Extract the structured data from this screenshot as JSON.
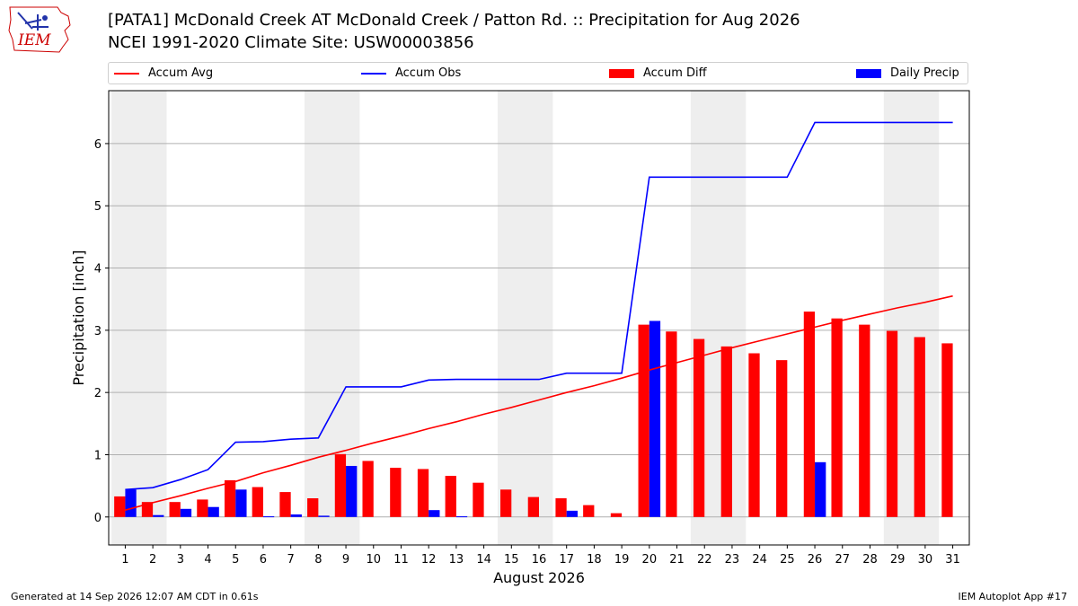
{
  "header": {
    "logo_text": "IEM",
    "title_line1": "[PATA1] McDonald Creek  AT McDonald Creek / Patton Rd. :: Precipitation for Aug 2026",
    "title_line2": "NCEI 1991-2020 Climate Site: USW00003856"
  },
  "footer": {
    "generated": "Generated at 14 Sep 2026 12:07 AM CDT in 0.61s",
    "app": "IEM Autoplot App #17"
  },
  "colors": {
    "accum_avg": "#ff0000",
    "accum_obs": "#0000ff",
    "accum_diff": "#ff0000",
    "daily_precip": "#0000ff",
    "weekend_shade": "#eeeeee",
    "grid": "#b0b0b0"
  },
  "chart_data": {
    "type": "bar",
    "xlabel": "August 2026",
    "ylabel": "Precipitation [inch]",
    "ylim": [
      -0.45,
      6.85
    ],
    "yticks": [
      0,
      1,
      2,
      3,
      4,
      5,
      6
    ],
    "grid": true,
    "legend_placement": "top",
    "x": [
      1,
      2,
      3,
      4,
      5,
      6,
      7,
      8,
      9,
      10,
      11,
      12,
      13,
      14,
      15,
      16,
      17,
      18,
      19,
      20,
      21,
      22,
      23,
      24,
      25,
      26,
      27,
      28,
      29,
      30,
      31
    ],
    "shaded_weekends": [
      [
        1,
        2
      ],
      [
        8,
        9
      ],
      [
        15,
        16
      ],
      [
        22,
        23
      ],
      [
        29,
        30
      ]
    ],
    "series": [
      {
        "name": "Accum Avg",
        "kind": "line",
        "values": [
          0.11,
          0.23,
          0.34,
          0.46,
          0.57,
          0.71,
          0.83,
          0.96,
          1.07,
          1.19,
          1.3,
          1.42,
          1.53,
          1.65,
          1.76,
          1.88,
          2.0,
          2.11,
          2.23,
          2.36,
          2.48,
          2.6,
          2.72,
          2.83,
          2.94,
          3.05,
          3.16,
          3.26,
          3.36,
          3.45,
          3.55
        ]
      },
      {
        "name": "Accum Obs",
        "kind": "line",
        "values": [
          0.44,
          0.47,
          0.6,
          0.76,
          1.2,
          1.21,
          1.25,
          1.27,
          2.09,
          2.09,
          2.09,
          2.2,
          2.21,
          2.21,
          2.21,
          2.21,
          2.31,
          2.31,
          2.31,
          5.46,
          5.46,
          5.46,
          5.46,
          5.46,
          5.46,
          6.34,
          6.34,
          6.34,
          6.34,
          6.34,
          6.34
        ]
      },
      {
        "name": "Accum Diff",
        "kind": "bar",
        "values": [
          0.33,
          0.24,
          0.24,
          0.28,
          0.59,
          0.48,
          0.4,
          0.3,
          1.01,
          0.9,
          0.79,
          0.77,
          0.66,
          0.55,
          0.44,
          0.32,
          0.3,
          0.19,
          0.06,
          3.09,
          2.98,
          2.86,
          2.74,
          2.63,
          2.52,
          3.3,
          3.19,
          3.09,
          2.99,
          2.89,
          2.79
        ]
      },
      {
        "name": "Daily Precip",
        "kind": "bar",
        "values": [
          0.44,
          0.03,
          0.13,
          0.16,
          0.44,
          0.01,
          0.04,
          0.02,
          0.82,
          0,
          0,
          0.11,
          0.01,
          0,
          0,
          0,
          0.1,
          0,
          0,
          3.15,
          0,
          0,
          0,
          0,
          0,
          0.88,
          0,
          0,
          0,
          0,
          0
        ]
      }
    ]
  }
}
